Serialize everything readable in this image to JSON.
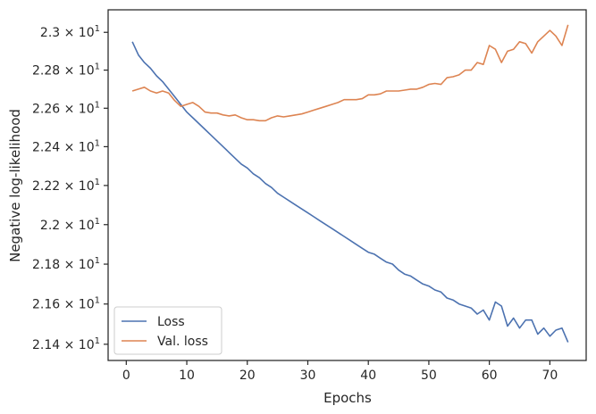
{
  "chart_data": {
    "type": "line",
    "xlabel": "Epochs",
    "ylabel": "Negative log-likelihood",
    "y_scale": "log",
    "xlim": [
      -3,
      76
    ],
    "ylim": [
      21.32,
      23.12
    ],
    "x_ticks": [
      0,
      10,
      20,
      30,
      40,
      50,
      60,
      70
    ],
    "x_tick_labels": [
      "0",
      "10",
      "20",
      "30",
      "40",
      "50",
      "60",
      "70"
    ],
    "y_ticks": [
      21.4,
      21.6,
      21.8,
      22.0,
      22.2,
      22.4,
      22.6,
      22.8,
      23.0
    ],
    "y_tick_mantissas": [
      "2.14",
      "2.16",
      "2.18",
      "2.2",
      "2.22",
      "2.24",
      "2.26",
      "2.28",
      "2.3"
    ],
    "y_tick_base": "10",
    "y_tick_exponent": "1",
    "grid": false,
    "legend_position": "lower-left",
    "x": [
      1,
      2,
      3,
      4,
      5,
      6,
      7,
      8,
      9,
      10,
      11,
      12,
      13,
      14,
      15,
      16,
      17,
      18,
      19,
      20,
      21,
      22,
      23,
      24,
      25,
      26,
      27,
      28,
      29,
      30,
      31,
      32,
      33,
      34,
      35,
      36,
      37,
      38,
      39,
      40,
      41,
      42,
      43,
      44,
      45,
      46,
      47,
      48,
      49,
      50,
      51,
      52,
      53,
      54,
      55,
      56,
      57,
      58,
      59,
      60,
      61,
      62,
      63,
      64,
      65,
      66,
      67,
      68,
      69,
      70,
      71,
      72,
      73
    ],
    "series": [
      {
        "name": "Loss",
        "color": "#4c72b0",
        "values": [
          22.95,
          22.88,
          22.84,
          22.81,
          22.77,
          22.74,
          22.7,
          22.66,
          22.62,
          22.58,
          22.55,
          22.52,
          22.49,
          22.46,
          22.43,
          22.4,
          22.37,
          22.34,
          22.31,
          22.29,
          22.26,
          22.24,
          22.21,
          22.19,
          22.16,
          22.14,
          22.12,
          22.1,
          22.08,
          22.06,
          22.04,
          22.02,
          22.0,
          21.98,
          21.96,
          21.94,
          21.92,
          21.9,
          21.88,
          21.86,
          21.85,
          21.83,
          21.81,
          21.8,
          21.77,
          21.75,
          21.74,
          21.72,
          21.7,
          21.69,
          21.67,
          21.66,
          21.63,
          21.62,
          21.6,
          21.59,
          21.58,
          21.55,
          21.57,
          21.52,
          21.61,
          21.59,
          21.49,
          21.53,
          21.48,
          21.52,
          21.52,
          21.45,
          21.48,
          21.44,
          21.47,
          21.48,
          21.41
        ]
      },
      {
        "name": "Val. loss",
        "color": "#dd8452",
        "values": [
          22.69,
          22.7,
          22.71,
          22.69,
          22.68,
          22.69,
          22.68,
          22.64,
          22.61,
          22.62,
          22.63,
          22.61,
          22.58,
          22.575,
          22.575,
          22.565,
          22.56,
          22.565,
          22.55,
          22.54,
          22.54,
          22.535,
          22.535,
          22.55,
          22.56,
          22.555,
          22.56,
          22.565,
          22.57,
          22.58,
          22.59,
          22.6,
          22.61,
          22.62,
          22.63,
          22.645,
          22.645,
          22.645,
          22.65,
          22.67,
          22.67,
          22.675,
          22.69,
          22.69,
          22.69,
          22.695,
          22.7,
          22.7,
          22.71,
          22.725,
          22.73,
          22.725,
          22.76,
          22.765,
          22.775,
          22.8,
          22.8,
          22.84,
          22.83,
          22.93,
          22.91,
          22.84,
          22.9,
          22.91,
          22.95,
          22.94,
          22.89,
          22.95,
          22.98,
          23.01,
          22.98,
          22.93,
          23.04
        ]
      }
    ]
  }
}
